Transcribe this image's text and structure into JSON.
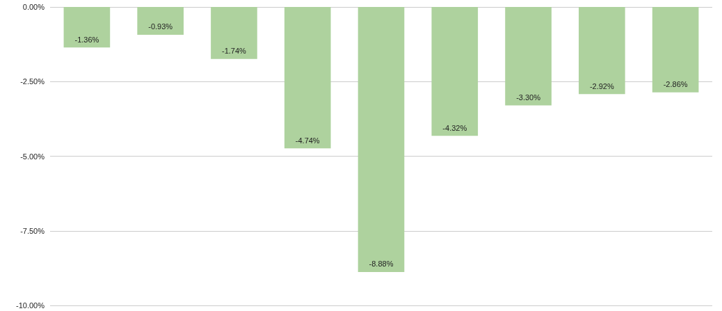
{
  "chart_data": {
    "type": "bar",
    "categories": [
      null,
      null,
      null,
      null,
      null,
      null,
      null,
      null,
      null
    ],
    "values": [
      -1.36,
      -0.93,
      -1.74,
      -4.74,
      -8.88,
      -4.32,
      -3.3,
      -2.92,
      -2.86
    ],
    "value_labels": [
      "-1.36%",
      "-0.93%",
      "-1.74%",
      "-4.74%",
      "-8.88%",
      "-4.32%",
      "-3.30%",
      "-2.92%",
      "-2.86%"
    ],
    "color": "#aed29e",
    "ylim": [
      -10,
      0
    ],
    "yticks": [
      {
        "value": 0,
        "label": "0.00%"
      },
      {
        "value": -2.5,
        "label": "-2.50%"
      },
      {
        "value": -5,
        "label": "-5.00%"
      },
      {
        "value": -7.5,
        "label": "-7.50%"
      },
      {
        "value": -10,
        "label": "-10.00%"
      }
    ],
    "grid": "y",
    "tick_labels": "y"
  }
}
